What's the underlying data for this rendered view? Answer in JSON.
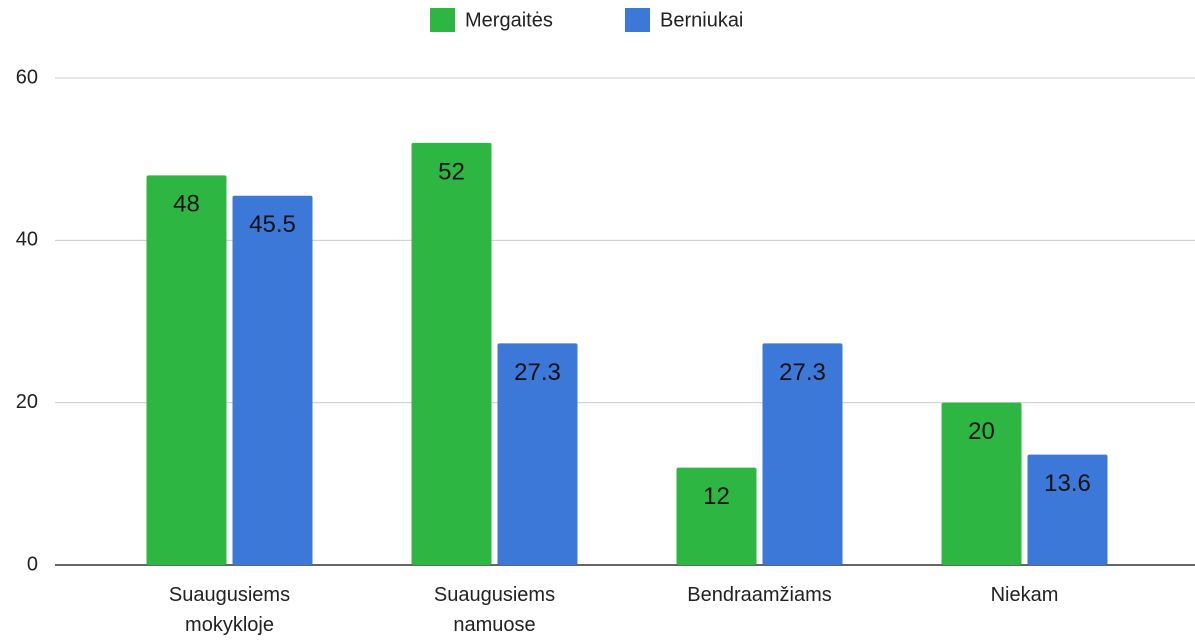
{
  "chart_data": {
    "type": "bar",
    "categories": [
      "Suaugusiems mokykloje",
      "Suaugusiems namuose",
      "Bendraamžiams",
      "Niekam"
    ],
    "series": [
      {
        "name": "Mergaitės",
        "color": "#2db742",
        "values": [
          48,
          52,
          12,
          20
        ]
      },
      {
        "name": "Berniukai",
        "color": "#3b78d8",
        "values": [
          45.5,
          27.3,
          27.3,
          13.6
        ]
      }
    ],
    "ylim": [
      0,
      60
    ],
    "yticks": [
      0,
      20,
      40,
      60
    ],
    "grid": true,
    "legend": "top"
  }
}
